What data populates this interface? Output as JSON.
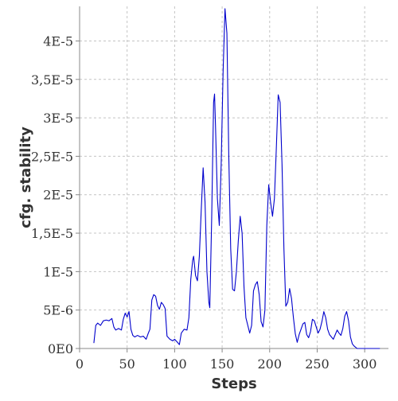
{
  "chart_data": {
    "type": "line",
    "title": "",
    "xlabel": "Steps",
    "ylabel": "cfg. stability",
    "xlim": [
      0,
      325
    ],
    "ylim": [
      0,
      4.45e-05
    ],
    "grid": true,
    "x_ticks": [
      {
        "value": 0,
        "label": "0"
      },
      {
        "value": 50,
        "label": "50"
      },
      {
        "value": 100,
        "label": "100"
      },
      {
        "value": 150,
        "label": "150"
      },
      {
        "value": 200,
        "label": "200"
      },
      {
        "value": 250,
        "label": "250"
      },
      {
        "value": 300,
        "label": "300"
      }
    ],
    "y_ticks": [
      {
        "value": 0,
        "label": "0E0"
      },
      {
        "value": 5e-06,
        "label": "5E-6"
      },
      {
        "value": 1e-05,
        "label": "1E-5"
      },
      {
        "value": 1.5e-05,
        "label": "1,5E-5"
      },
      {
        "value": 2e-05,
        "label": "2E-5"
      },
      {
        "value": 2.5e-05,
        "label": "2,5E-5"
      },
      {
        "value": 3e-05,
        "label": "3E-5"
      },
      {
        "value": 3.5e-05,
        "label": "3,5E-5"
      },
      {
        "value": 4e-05,
        "label": "4E-5"
      }
    ],
    "series": [
      {
        "color": "#0000cc",
        "points": [
          [
            15,
            7e-07
          ],
          [
            17,
            3e-06
          ],
          [
            19,
            3.3e-06
          ],
          [
            22,
            3e-06
          ],
          [
            25,
            3.6e-06
          ],
          [
            28,
            3.7e-06
          ],
          [
            31,
            3.6e-06
          ],
          [
            34,
            3.9e-06
          ],
          [
            36,
            2.8e-06
          ],
          [
            38,
            2.4e-06
          ],
          [
            41,
            2.6e-06
          ],
          [
            44,
            2.4e-06
          ],
          [
            46,
            3.8e-06
          ],
          [
            48,
            4.6e-06
          ],
          [
            50,
            4.1e-06
          ],
          [
            52,
            4.8e-06
          ],
          [
            54,
            2.5e-06
          ],
          [
            56,
            1.7e-06
          ],
          [
            58,
            1.5e-06
          ],
          [
            61,
            1.7e-06
          ],
          [
            64,
            1.5e-06
          ],
          [
            67,
            1.6e-06
          ],
          [
            70,
            1.2e-06
          ],
          [
            72,
            1.9e-06
          ],
          [
            74,
            2.5e-06
          ],
          [
            76,
            6.3e-06
          ],
          [
            78,
            7e-06
          ],
          [
            80,
            6.8e-06
          ],
          [
            82,
            5.6e-06
          ],
          [
            84,
            5.1e-06
          ],
          [
            86,
            6e-06
          ],
          [
            88,
            5.7e-06
          ],
          [
            90,
            5.2e-06
          ],
          [
            92,
            1.6e-06
          ],
          [
            95,
            1.2e-06
          ],
          [
            98,
            1e-06
          ],
          [
            100,
            1.2e-06
          ],
          [
            103,
            8e-07
          ],
          [
            105,
            5e-07
          ],
          [
            107,
            2e-06
          ],
          [
            110,
            2.5e-06
          ],
          [
            113,
            2.4e-06
          ],
          [
            115,
            4e-06
          ],
          [
            117,
            9e-06
          ],
          [
            119,
            1.15e-05
          ],
          [
            120,
            1.2e-05
          ],
          [
            122,
            9.5e-06
          ],
          [
            124,
            8.8e-06
          ],
          [
            126,
            1.2e-05
          ],
          [
            128,
            1.8e-05
          ],
          [
            130,
            2.35e-05
          ],
          [
            132,
            1.9e-05
          ],
          [
            134,
            1e-05
          ],
          [
            136,
            6e-06
          ],
          [
            137,
            5.3e-06
          ],
          [
            139,
            1.7e-05
          ],
          [
            141,
            3.2e-05
          ],
          [
            142,
            3.31e-05
          ],
          [
            143,
            2.9e-05
          ],
          [
            145,
            1.95e-05
          ],
          [
            147,
            1.6e-05
          ],
          [
            149,
            2.4e-05
          ],
          [
            151,
            3.6e-05
          ],
          [
            153,
            4.42e-05
          ],
          [
            155,
            4.1e-05
          ],
          [
            157,
            2.5e-05
          ],
          [
            159,
            1.3e-05
          ],
          [
            161,
            7.7e-06
          ],
          [
            163,
            7.5e-06
          ],
          [
            165,
            1e-05
          ],
          [
            167,
            1.4e-05
          ],
          [
            169,
            1.72e-05
          ],
          [
            171,
            1.5e-05
          ],
          [
            173,
            8e-06
          ],
          [
            175,
            4e-06
          ],
          [
            177,
            3e-06
          ],
          [
            179,
            2e-06
          ],
          [
            181,
            3e-06
          ],
          [
            183,
            7.5e-06
          ],
          [
            185,
            8.3e-06
          ],
          [
            187,
            8.7e-06
          ],
          [
            189,
            7e-06
          ],
          [
            191,
            3.5e-06
          ],
          [
            193,
            2.8e-06
          ],
          [
            195,
            5e-06
          ],
          [
            197,
            1.6e-05
          ],
          [
            199,
            2.13e-05
          ],
          [
            201,
            1.9e-05
          ],
          [
            203,
            1.72e-05
          ],
          [
            205,
            1.95e-05
          ],
          [
            207,
            2.6e-05
          ],
          [
            209,
            3.3e-05
          ],
          [
            211,
            3.2e-05
          ],
          [
            213,
            2.4e-05
          ],
          [
            215,
            1.3e-05
          ],
          [
            217,
            5.5e-06
          ],
          [
            219,
            6e-06
          ],
          [
            221,
            7.8e-06
          ],
          [
            223,
            6.5e-06
          ],
          [
            225,
            4e-06
          ],
          [
            227,
            1.9e-06
          ],
          [
            229,
            8e-07
          ],
          [
            231,
            1.8e-06
          ],
          [
            233,
            2.5e-06
          ],
          [
            235,
            3.2e-06
          ],
          [
            237,
            3.4e-06
          ],
          [
            239,
            1.8e-06
          ],
          [
            241,
            1.4e-06
          ],
          [
            243,
            2.2e-06
          ],
          [
            245,
            3.8e-06
          ],
          [
            247,
            3.6e-06
          ],
          [
            249,
            2.8e-06
          ],
          [
            251,
            2e-06
          ],
          [
            253,
            2.5e-06
          ],
          [
            255,
            3.5e-06
          ],
          [
            257,
            4.8e-06
          ],
          [
            259,
            4e-06
          ],
          [
            261,
            2.5e-06
          ],
          [
            263,
            1.8e-06
          ],
          [
            265,
            1.5e-06
          ],
          [
            267,
            1.2e-06
          ],
          [
            269,
            1.8e-06
          ],
          [
            271,
            2.4e-06
          ],
          [
            273,
            2e-06
          ],
          [
            275,
            1.7e-06
          ],
          [
            277,
            2.6e-06
          ],
          [
            279,
            4.2e-06
          ],
          [
            281,
            4.8e-06
          ],
          [
            283,
            3.6e-06
          ],
          [
            285,
            1.5e-06
          ],
          [
            287,
            6e-07
          ],
          [
            289,
            3e-07
          ],
          [
            292,
            0
          ],
          [
            316,
            0
          ]
        ]
      }
    ]
  }
}
